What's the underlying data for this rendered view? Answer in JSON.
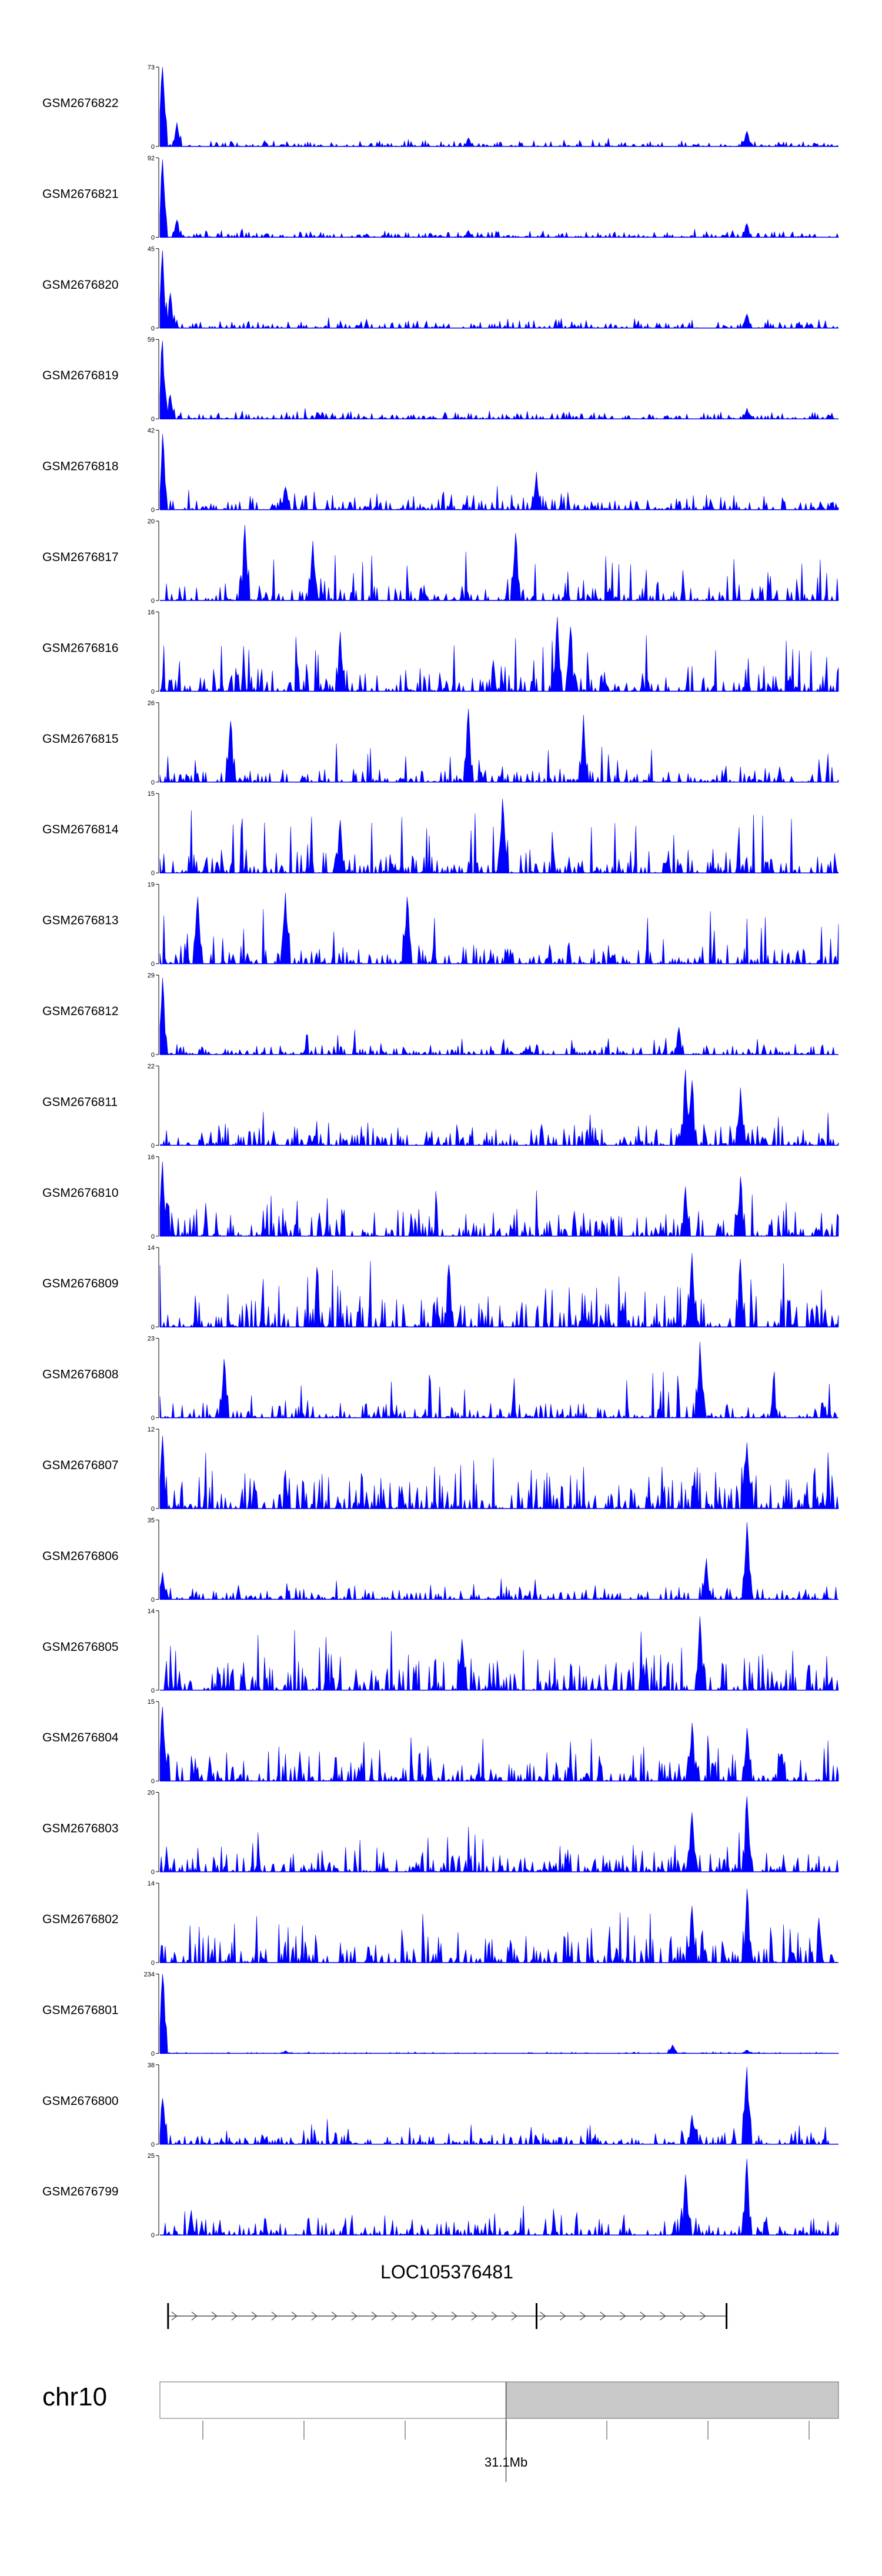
{
  "chart_data": {
    "type": "area",
    "tracks": [
      {
        "name": "GSM2676822",
        "ymax": 73,
        "ymin": 0,
        "peaks": [
          [
            0.3,
            73
          ],
          [
            2.5,
            22
          ],
          [
            45.5,
            8
          ],
          [
            86.5,
            14
          ]
        ],
        "base": 3.0,
        "noise": 2.0,
        "seed": 1
      },
      {
        "name": "GSM2676821",
        "ymax": 92,
        "ymin": 0,
        "peaks": [
          [
            0.3,
            90
          ],
          [
            2.5,
            20
          ],
          [
            45.5,
            8
          ],
          [
            86.5,
            16
          ]
        ],
        "base": 4.0,
        "noise": 3.0,
        "seed": 2
      },
      {
        "name": "GSM2676820",
        "ymax": 45,
        "ymin": 0,
        "peaks": [
          [
            0.3,
            44
          ],
          [
            1.5,
            20
          ],
          [
            86.5,
            8
          ]
        ],
        "base": 2.5,
        "noise": 2.0,
        "seed": 3
      },
      {
        "name": "GSM2676819",
        "ymax": 59,
        "ymin": 0,
        "peaks": [
          [
            0.3,
            58
          ],
          [
            1.5,
            18
          ],
          [
            86.5,
            8
          ]
        ],
        "base": 3.0,
        "noise": 2.5,
        "seed": 4
      },
      {
        "name": "GSM2676818",
        "ymax": 42,
        "ymin": 0,
        "peaks": [
          [
            0.3,
            40
          ],
          [
            18.5,
            12
          ],
          [
            55.5,
            20
          ]
        ],
        "base": 4.0,
        "noise": 7.0,
        "seed": 5
      },
      {
        "name": "GSM2676817",
        "ymax": 20,
        "ymin": 0,
        "peaks": [
          [
            12.5,
            19
          ],
          [
            22.5,
            15
          ],
          [
            52.5,
            17
          ]
        ],
        "base": 2.5,
        "noise": 9.0,
        "seed": 6
      },
      {
        "name": "GSM2676816",
        "ymax": 16,
        "ymin": 0,
        "peaks": [
          [
            26.5,
            12
          ],
          [
            58.5,
            15
          ],
          [
            60.5,
            13
          ]
        ],
        "base": 2.5,
        "noise": 8.0,
        "seed": 7
      },
      {
        "name": "GSM2676815",
        "ymax": 26,
        "ymin": 0,
        "peaks": [
          [
            10.5,
            20
          ],
          [
            45.5,
            24
          ],
          [
            62.5,
            22
          ]
        ],
        "base": 2.5,
        "noise": 9.0,
        "seed": 8
      },
      {
        "name": "GSM2676814",
        "ymax": 15,
        "ymin": 0,
        "peaks": [
          [
            26.5,
            10
          ],
          [
            50.5,
            14
          ]
        ],
        "base": 2.5,
        "noise": 8.0,
        "seed": 9
      },
      {
        "name": "GSM2676813",
        "ymax": 19,
        "ymin": 0,
        "peaks": [
          [
            5.5,
            16
          ],
          [
            18.5,
            17
          ],
          [
            36.5,
            16
          ]
        ],
        "base": 2.5,
        "noise": 9.0,
        "seed": 10
      },
      {
        "name": "GSM2676812",
        "ymax": 29,
        "ymin": 0,
        "peaks": [
          [
            0.3,
            28
          ],
          [
            76.5,
            10
          ]
        ],
        "base": 2.0,
        "noise": 5.0,
        "seed": 11
      },
      {
        "name": "GSM2676811",
        "ymax": 22,
        "ymin": 0,
        "peaks": [
          [
            77.5,
            21
          ],
          [
            78.5,
            18
          ],
          [
            85.5,
            16
          ]
        ],
        "base": 3.0,
        "noise": 5.0,
        "seed": 12
      },
      {
        "name": "GSM2676810",
        "ymax": 16,
        "ymin": 0,
        "peaks": [
          [
            0.3,
            15
          ],
          [
            77.5,
            10
          ],
          [
            85.5,
            12
          ]
        ],
        "base": 3.0,
        "noise": 5.0,
        "seed": 13
      },
      {
        "name": "GSM2676809",
        "ymax": 14,
        "ymin": 0,
        "peaks": [
          [
            42.5,
            11
          ],
          [
            78.5,
            13
          ],
          [
            85.5,
            12
          ]
        ],
        "base": 3.5,
        "noise": 6.0,
        "seed": 14
      },
      {
        "name": "GSM2676808",
        "ymax": 23,
        "ymin": 0,
        "peaks": [
          [
            9.5,
            17
          ],
          [
            79.5,
            22
          ]
        ],
        "base": 2.5,
        "noise": 9.0,
        "seed": 15
      },
      {
        "name": "GSM2676807",
        "ymax": 12,
        "ymin": 0,
        "peaks": [
          [
            0.3,
            11
          ],
          [
            86.5,
            10
          ]
        ],
        "base": 3.0,
        "noise": 5.0,
        "seed": 16
      },
      {
        "name": "GSM2676806",
        "ymax": 35,
        "ymin": 0,
        "peaks": [
          [
            0.3,
            12
          ],
          [
            86.5,
            34
          ],
          [
            80.5,
            18
          ]
        ],
        "base": 2.5,
        "noise": 5.0,
        "seed": 17
      },
      {
        "name": "GSM2676805",
        "ymax": 14,
        "ymin": 0,
        "peaks": [
          [
            79.5,
            13
          ],
          [
            44.5,
            9
          ]
        ],
        "base": 3.5,
        "noise": 4.5,
        "seed": 18
      },
      {
        "name": "GSM2676804",
        "ymax": 15,
        "ymin": 0,
        "peaks": [
          [
            0.3,
            14
          ],
          [
            78.5,
            11
          ],
          [
            86.5,
            10
          ]
        ],
        "base": 3.0,
        "noise": 4.5,
        "seed": 19
      },
      {
        "name": "GSM2676803",
        "ymax": 20,
        "ymin": 0,
        "peaks": [
          [
            78.5,
            15
          ],
          [
            86.5,
            19
          ]
        ],
        "base": 3.0,
        "noise": 6.0,
        "seed": 20
      },
      {
        "name": "GSM2676802",
        "ymax": 14,
        "ymin": 0,
        "peaks": [
          [
            86.5,
            13
          ],
          [
            78.5,
            10
          ]
        ],
        "base": 3.0,
        "noise": 6.0,
        "seed": 21
      },
      {
        "name": "GSM2676801",
        "ymax": 234,
        "ymin": 0,
        "peaks": [
          [
            0.3,
            234
          ],
          [
            75.5,
            25
          ],
          [
            86.5,
            10
          ],
          [
            18.5,
            8
          ]
        ],
        "base": 2.0,
        "noise": 2.0,
        "seed": 22
      },
      {
        "name": "GSM2676800",
        "ymax": 38,
        "ymin": 0,
        "peaks": [
          [
            0.3,
            22
          ],
          [
            86.5,
            37
          ],
          [
            78.5,
            14
          ]
        ],
        "base": 3.0,
        "noise": 6.0,
        "seed": 23
      },
      {
        "name": "GSM2676799",
        "ymax": 25,
        "ymin": 0,
        "peaks": [
          [
            77.5,
            19
          ],
          [
            86.5,
            24
          ]
        ],
        "base": 3.0,
        "noise": 5.0,
        "seed": 24
      }
    ],
    "gene": {
      "name": "LOC105376481",
      "exons_pct": [
        1.2,
        55.5,
        83.5
      ],
      "strand": "+"
    },
    "ideogram": {
      "chromosome": "chr10",
      "highlight_start_pct": 51,
      "tick_label": "31.1Mb",
      "tick_label_pct": 51
    }
  }
}
